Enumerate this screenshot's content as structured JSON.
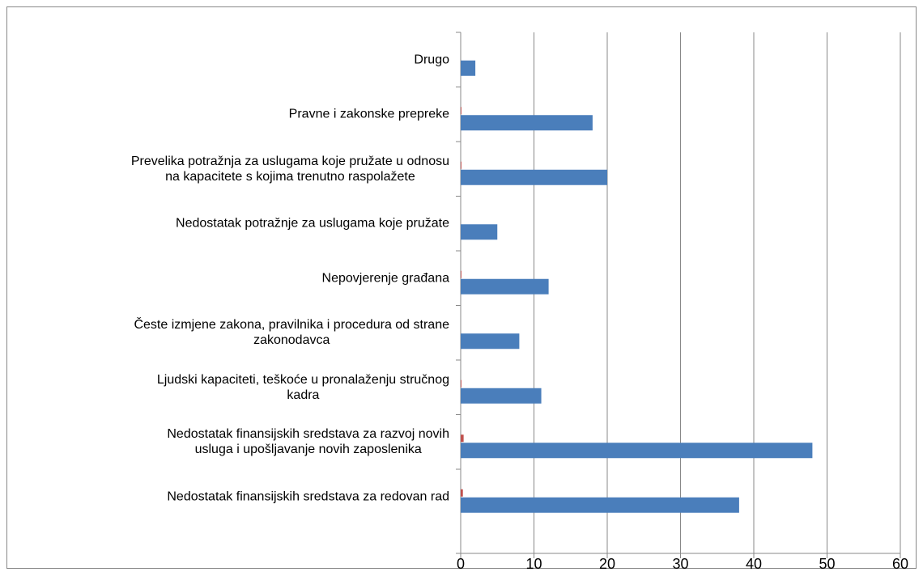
{
  "chart_data": {
    "type": "bar",
    "orientation": "horizontal",
    "categories": [
      "Nedostatak finansijskih sredstava za redovan rad",
      "Nedostatak finansijskih sredstava za razvoj novih\nusluga i upošljavanje novih zaposlenika",
      "Ljudski kapaciteti, teškoće u pronalaženju stručnog\nkadra",
      "Česte izmjene zakona, pravilnika i procedura od strane\nzakonodavca",
      "Nepovjerenje građana",
      "Nedostatak potražnje za uslugama koje pružate",
      "Prevelika potražnja za uslugama koje pružate u odnosu\nna kapacitete s kojima trenutno raspolažete",
      "Pravne i zakonske prepreke",
      "Drugo"
    ],
    "series": [
      {
        "color": "#4a7ebb",
        "values": [
          38,
          48,
          11,
          8,
          12,
          5,
          20,
          18,
          2
        ]
      },
      {
        "color": "#c0504d",
        "values": [
          0.3,
          0.4,
          0.1,
          0,
          0.1,
          0,
          0.1,
          0.1,
          0
        ]
      }
    ],
    "xlim": [
      0,
      60
    ],
    "xticks": [
      0,
      10,
      20,
      30,
      40,
      50,
      60
    ],
    "grid": true
  }
}
